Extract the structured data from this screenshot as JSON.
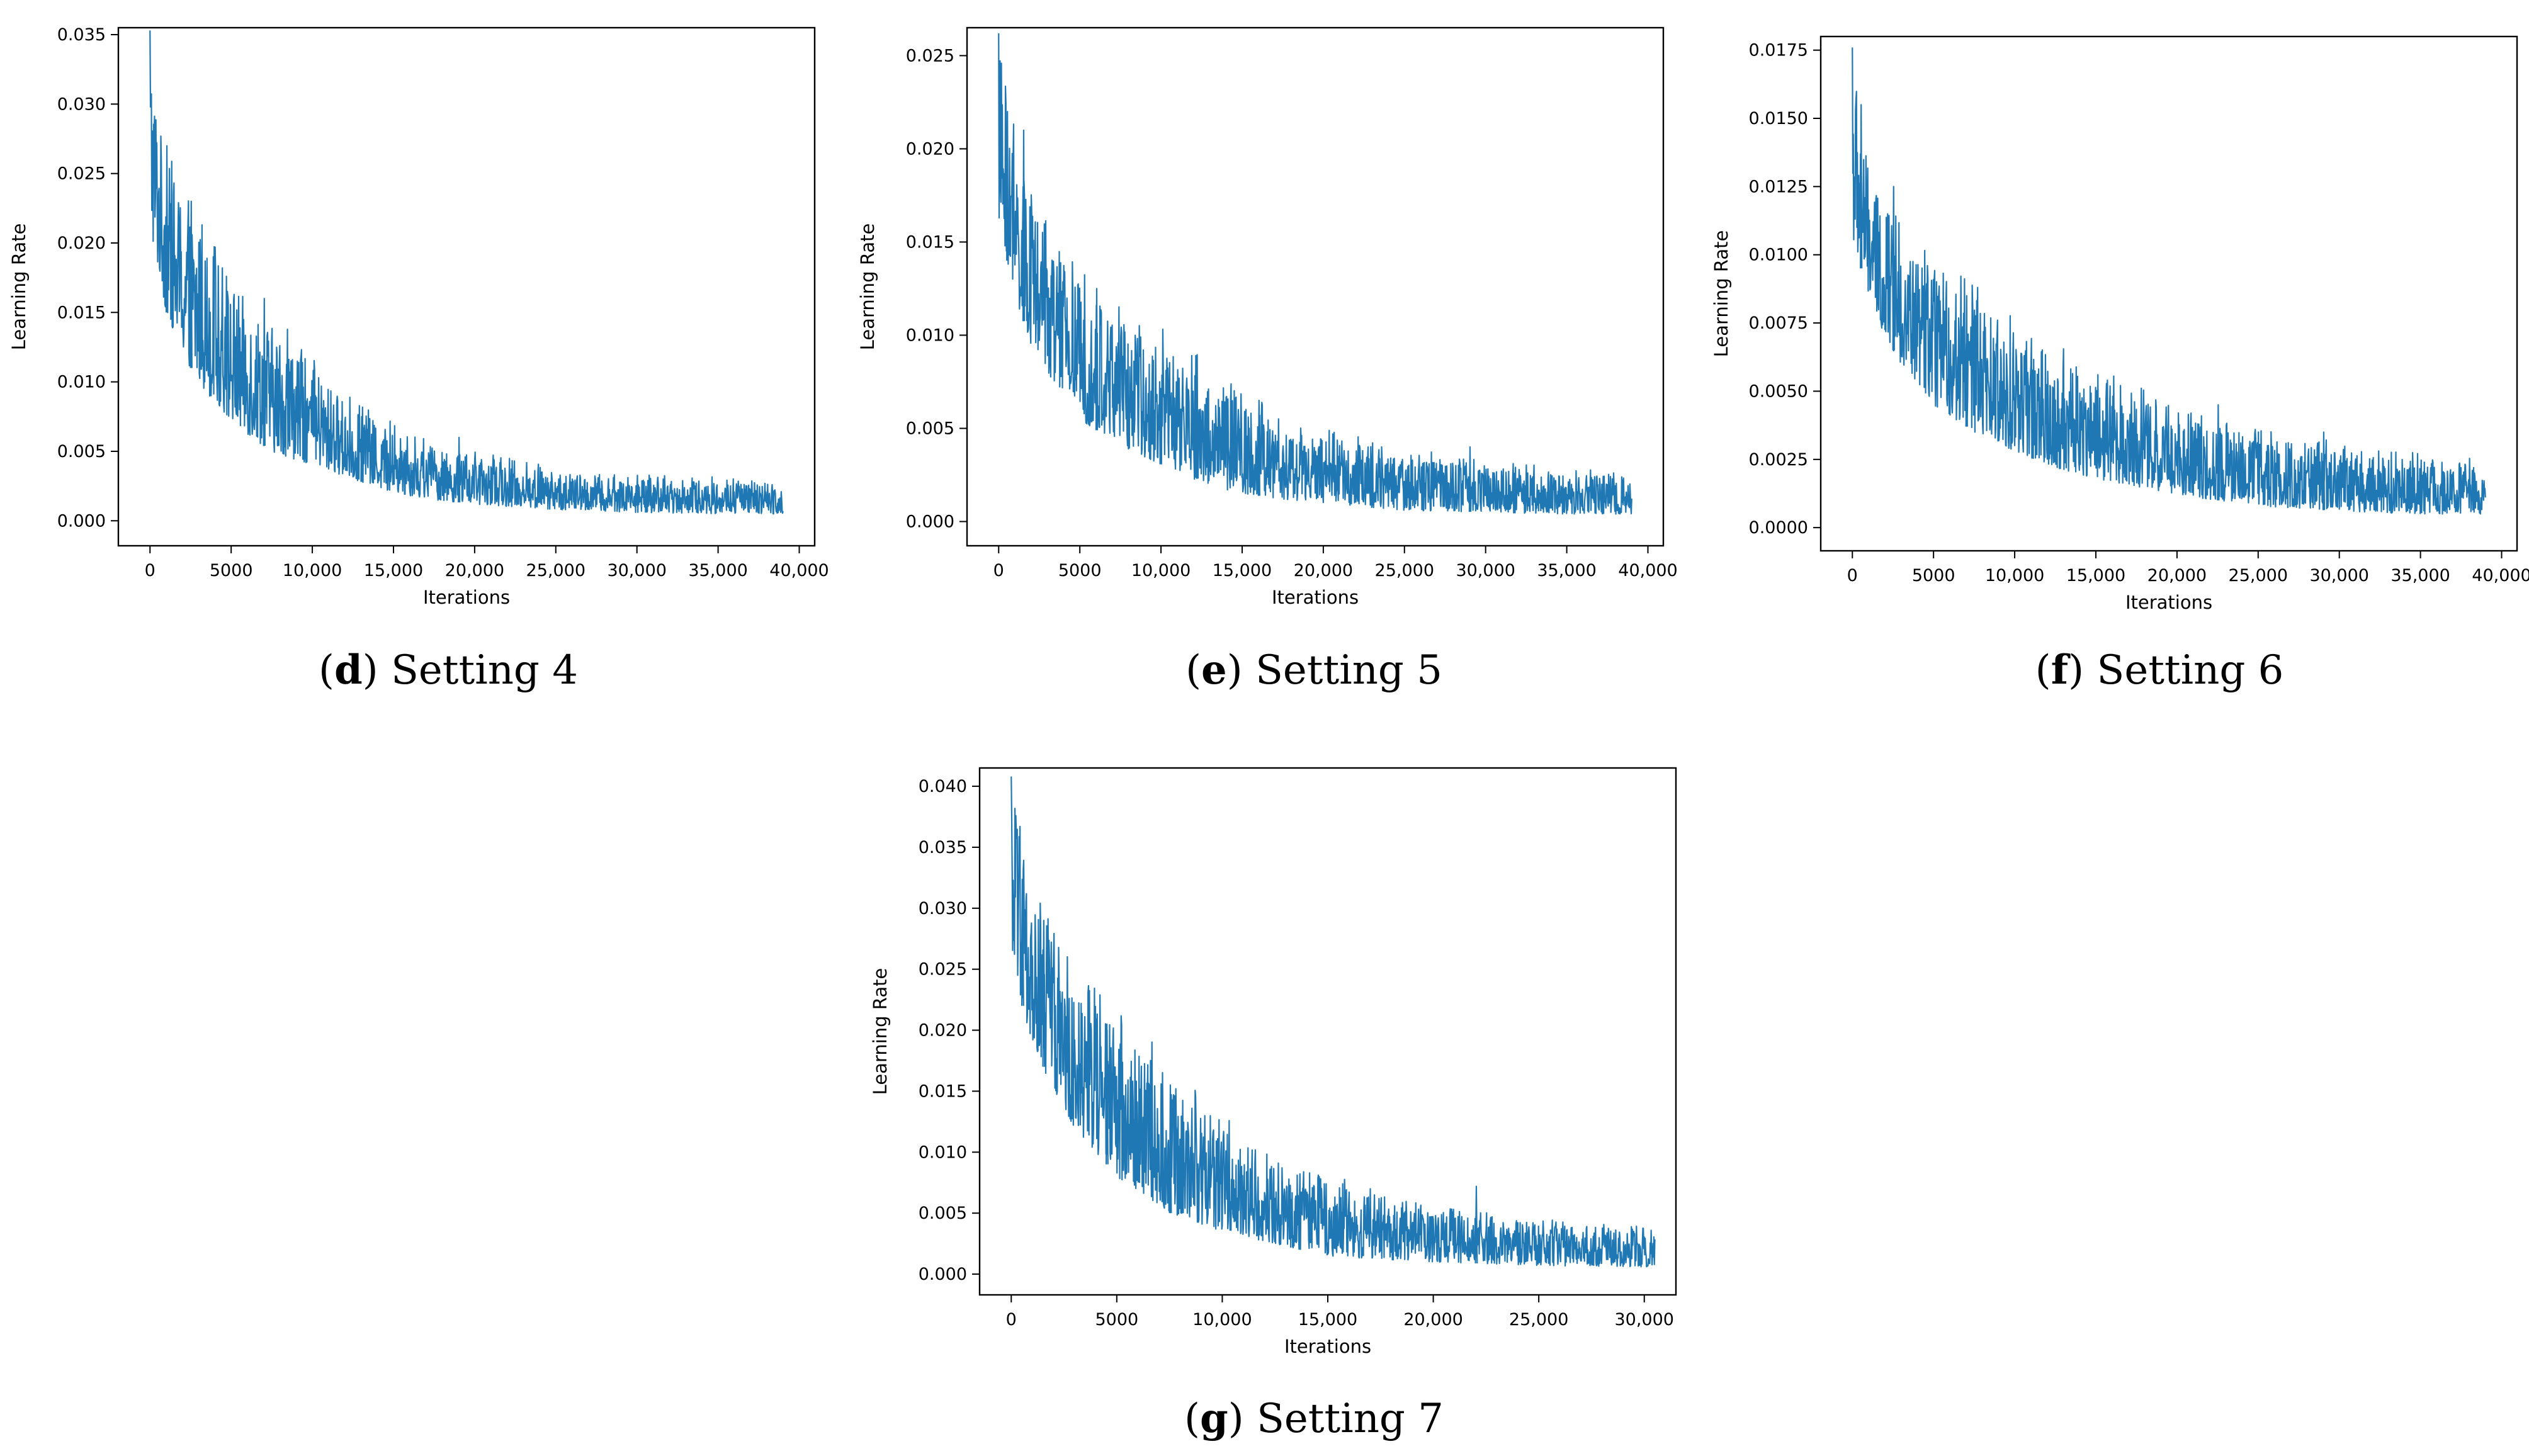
{
  "colors": {
    "series": "#1f77b4",
    "axes": "#000000",
    "background": "#ffffff"
  },
  "chart_data": [
    {
      "id": "d",
      "type": "line",
      "caption_letter": "d",
      "caption_text": "Setting 4",
      "title": "",
      "xlabel": "Iterations",
      "ylabel": "Learning Rate",
      "xlim": [
        -1950,
        40950
      ],
      "ylim": [
        -0.0018,
        0.0355
      ],
      "xticks": [
        0,
        5000,
        10000,
        15000,
        20000,
        25000,
        30000,
        35000,
        40000
      ],
      "xtick_labels": [
        "0",
        "5000",
        "10,000",
        "15,000",
        "20,000",
        "25,000",
        "30,000",
        "35,000",
        "40,000"
      ],
      "yticks": [
        0.0,
        0.005,
        0.01,
        0.015,
        0.02,
        0.025,
        0.03,
        0.035
      ],
      "ytick_labels": [
        "0.000",
        "0.005",
        "0.010",
        "0.015",
        "0.020",
        "0.025",
        "0.030",
        "0.035"
      ],
      "grid": false,
      "series": [
        {
          "name": "learning rate",
          "x_start": 0,
          "x_end": 39000,
          "peak": 0.0353,
          "decay": 8500,
          "spikes": [
            [
              1000,
              0.027
            ],
            [
              2500,
              0.023
            ],
            [
              7000,
              0.016
            ],
            [
              13000,
              0.0075
            ],
            [
              19000,
              0.006
            ]
          ],
          "x": [
            0,
            500,
            1000,
            2000,
            3000,
            5000,
            7500,
            10000,
            12500,
            15000,
            17500,
            20000,
            25000,
            30000,
            35000,
            39000
          ],
          "lower": [
            0.021,
            0.018,
            0.015,
            0.012,
            0.01,
            0.007,
            0.005,
            0.004,
            0.003,
            0.002,
            0.0015,
            0.0012,
            0.0008,
            0.0006,
            0.0005,
            0.0005
          ],
          "upper": [
            0.0353,
            0.029,
            0.026,
            0.023,
            0.021,
            0.017,
            0.014,
            0.011,
            0.008,
            0.0065,
            0.005,
            0.0045,
            0.0035,
            0.003,
            0.0028,
            0.0027
          ]
        }
      ]
    },
    {
      "id": "e",
      "type": "line",
      "caption_letter": "e",
      "caption_text": "Setting 5",
      "title": "",
      "xlabel": "Iterations",
      "ylabel": "Learning Rate",
      "xlim": [
        -1950,
        40950
      ],
      "ylim": [
        -0.0013,
        0.0265
      ],
      "xticks": [
        0,
        5000,
        10000,
        15000,
        20000,
        25000,
        30000,
        35000,
        40000
      ],
      "xtick_labels": [
        "0",
        "5000",
        "10,000",
        "15,000",
        "20,000",
        "25,000",
        "30,000",
        "35,000",
        "40,000"
      ],
      "yticks": [
        0.0,
        0.005,
        0.01,
        0.015,
        0.02,
        0.025
      ],
      "ytick_labels": [
        "0.000",
        "0.005",
        "0.010",
        "0.015",
        "0.020",
        "0.025"
      ],
      "grid": false,
      "series": [
        {
          "name": "learning rate",
          "x_start": 0,
          "x_end": 39000,
          "peak": 0.0262,
          "decay": 9500,
          "spikes": [
            [
              500,
              0.022
            ],
            [
              1500,
              0.021
            ],
            [
              6000,
              0.0125
            ],
            [
              16000,
              0.0065
            ],
            [
              29000,
              0.004
            ]
          ],
          "x": [
            0,
            500,
            1000,
            2000,
            3000,
            5000,
            7500,
            10000,
            12500,
            15000,
            17500,
            20000,
            25000,
            30000,
            35000,
            39000
          ],
          "lower": [
            0.016,
            0.014,
            0.012,
            0.0095,
            0.008,
            0.0055,
            0.004,
            0.003,
            0.002,
            0.0015,
            0.0012,
            0.001,
            0.0006,
            0.0005,
            0.0004,
            0.0004
          ],
          "upper": [
            0.0262,
            0.022,
            0.02,
            0.017,
            0.015,
            0.013,
            0.011,
            0.0095,
            0.008,
            0.0065,
            0.005,
            0.0045,
            0.0035,
            0.003,
            0.0025,
            0.0024
          ]
        }
      ]
    },
    {
      "id": "f",
      "type": "line",
      "caption_letter": "f",
      "caption_text": "Setting 6",
      "title": "",
      "xlabel": "Iterations",
      "ylabel": "Learning Rate",
      "xlim": [
        -1950,
        40950
      ],
      "ylim": [
        -0.00085,
        0.018
      ],
      "xticks": [
        0,
        5000,
        10000,
        15000,
        20000,
        25000,
        30000,
        35000,
        40000
      ],
      "xtick_labels": [
        "0",
        "5000",
        "10,000",
        "15,000",
        "20,000",
        "25,000",
        "30,000",
        "35,000",
        "40,000"
      ],
      "yticks": [
        0.0,
        0.0025,
        0.005,
        0.0075,
        0.01,
        0.0125,
        0.015,
        0.0175
      ],
      "ytick_labels": [
        "0.0000",
        "0.0025",
        "0.0050",
        "0.0075",
        "0.0100",
        "0.0125",
        "0.0150",
        "0.0175"
      ],
      "grid": false,
      "series": [
        {
          "name": "learning rate",
          "x_start": 0,
          "x_end": 39000,
          "peak": 0.0176,
          "decay": 9500,
          "spikes": [
            [
              500,
              0.0155
            ],
            [
              2500,
              0.0125
            ],
            [
              7000,
              0.0085
            ],
            [
              22500,
              0.0045
            ],
            [
              29000,
              0.0035
            ]
          ],
          "x": [
            0,
            500,
            1000,
            2000,
            3000,
            5000,
            7500,
            10000,
            12500,
            15000,
            17500,
            20000,
            25000,
            30000,
            35000,
            39000
          ],
          "lower": [
            0.0105,
            0.0095,
            0.0085,
            0.007,
            0.006,
            0.0045,
            0.0035,
            0.0028,
            0.0022,
            0.0018,
            0.0015,
            0.0012,
            0.0008,
            0.0006,
            0.0005,
            0.0005
          ],
          "upper": [
            0.0176,
            0.015,
            0.013,
            0.0115,
            0.0105,
            0.0095,
            0.0082,
            0.0072,
            0.0062,
            0.0055,
            0.0048,
            0.0042,
            0.0033,
            0.0028,
            0.0025,
            0.0022
          ]
        }
      ]
    },
    {
      "id": "g",
      "type": "line",
      "caption_letter": "g",
      "caption_text": "Setting 7",
      "title": "",
      "xlabel": "Iterations",
      "ylabel": "Learning Rate",
      "xlim": [
        -1500,
        31500
      ],
      "ylim": [
        -0.0017,
        0.0415
      ],
      "xticks": [
        0,
        5000,
        10000,
        15000,
        20000,
        25000,
        30000
      ],
      "xtick_labels": [
        "0",
        "5000",
        "10,000",
        "15,000",
        "20,000",
        "25,000",
        "30,000"
      ],
      "yticks": [
        0.0,
        0.005,
        0.01,
        0.015,
        0.02,
        0.025,
        0.03,
        0.035,
        0.04
      ],
      "ytick_labels": [
        "0.000",
        "0.005",
        "0.010",
        "0.015",
        "0.020",
        "0.025",
        "0.030",
        "0.035",
        "0.040"
      ],
      "grid": false,
      "series": [
        {
          "name": "learning rate",
          "x_start": 0,
          "x_end": 30500,
          "peak": 0.0408,
          "decay": 7000,
          "spikes": [
            [
              500,
              0.032
            ],
            [
              1500,
              0.029
            ],
            [
              4500,
              0.02
            ],
            [
              7500,
              0.0155
            ],
            [
              22000,
              0.0072
            ]
          ],
          "x": [
            0,
            500,
            1000,
            2000,
            3000,
            5000,
            7500,
            10000,
            12500,
            15000,
            17500,
            20000,
            25000,
            30000,
            30500
          ],
          "lower": [
            0.025,
            0.022,
            0.019,
            0.015,
            0.012,
            0.008,
            0.005,
            0.0035,
            0.0025,
            0.0015,
            0.0012,
            0.001,
            0.0007,
            0.0006,
            0.0006
          ],
          "upper": [
            0.0408,
            0.034,
            0.03,
            0.027,
            0.024,
            0.02,
            0.016,
            0.012,
            0.0095,
            0.0075,
            0.006,
            0.005,
            0.004,
            0.0035,
            0.0034
          ]
        }
      ]
    }
  ]
}
